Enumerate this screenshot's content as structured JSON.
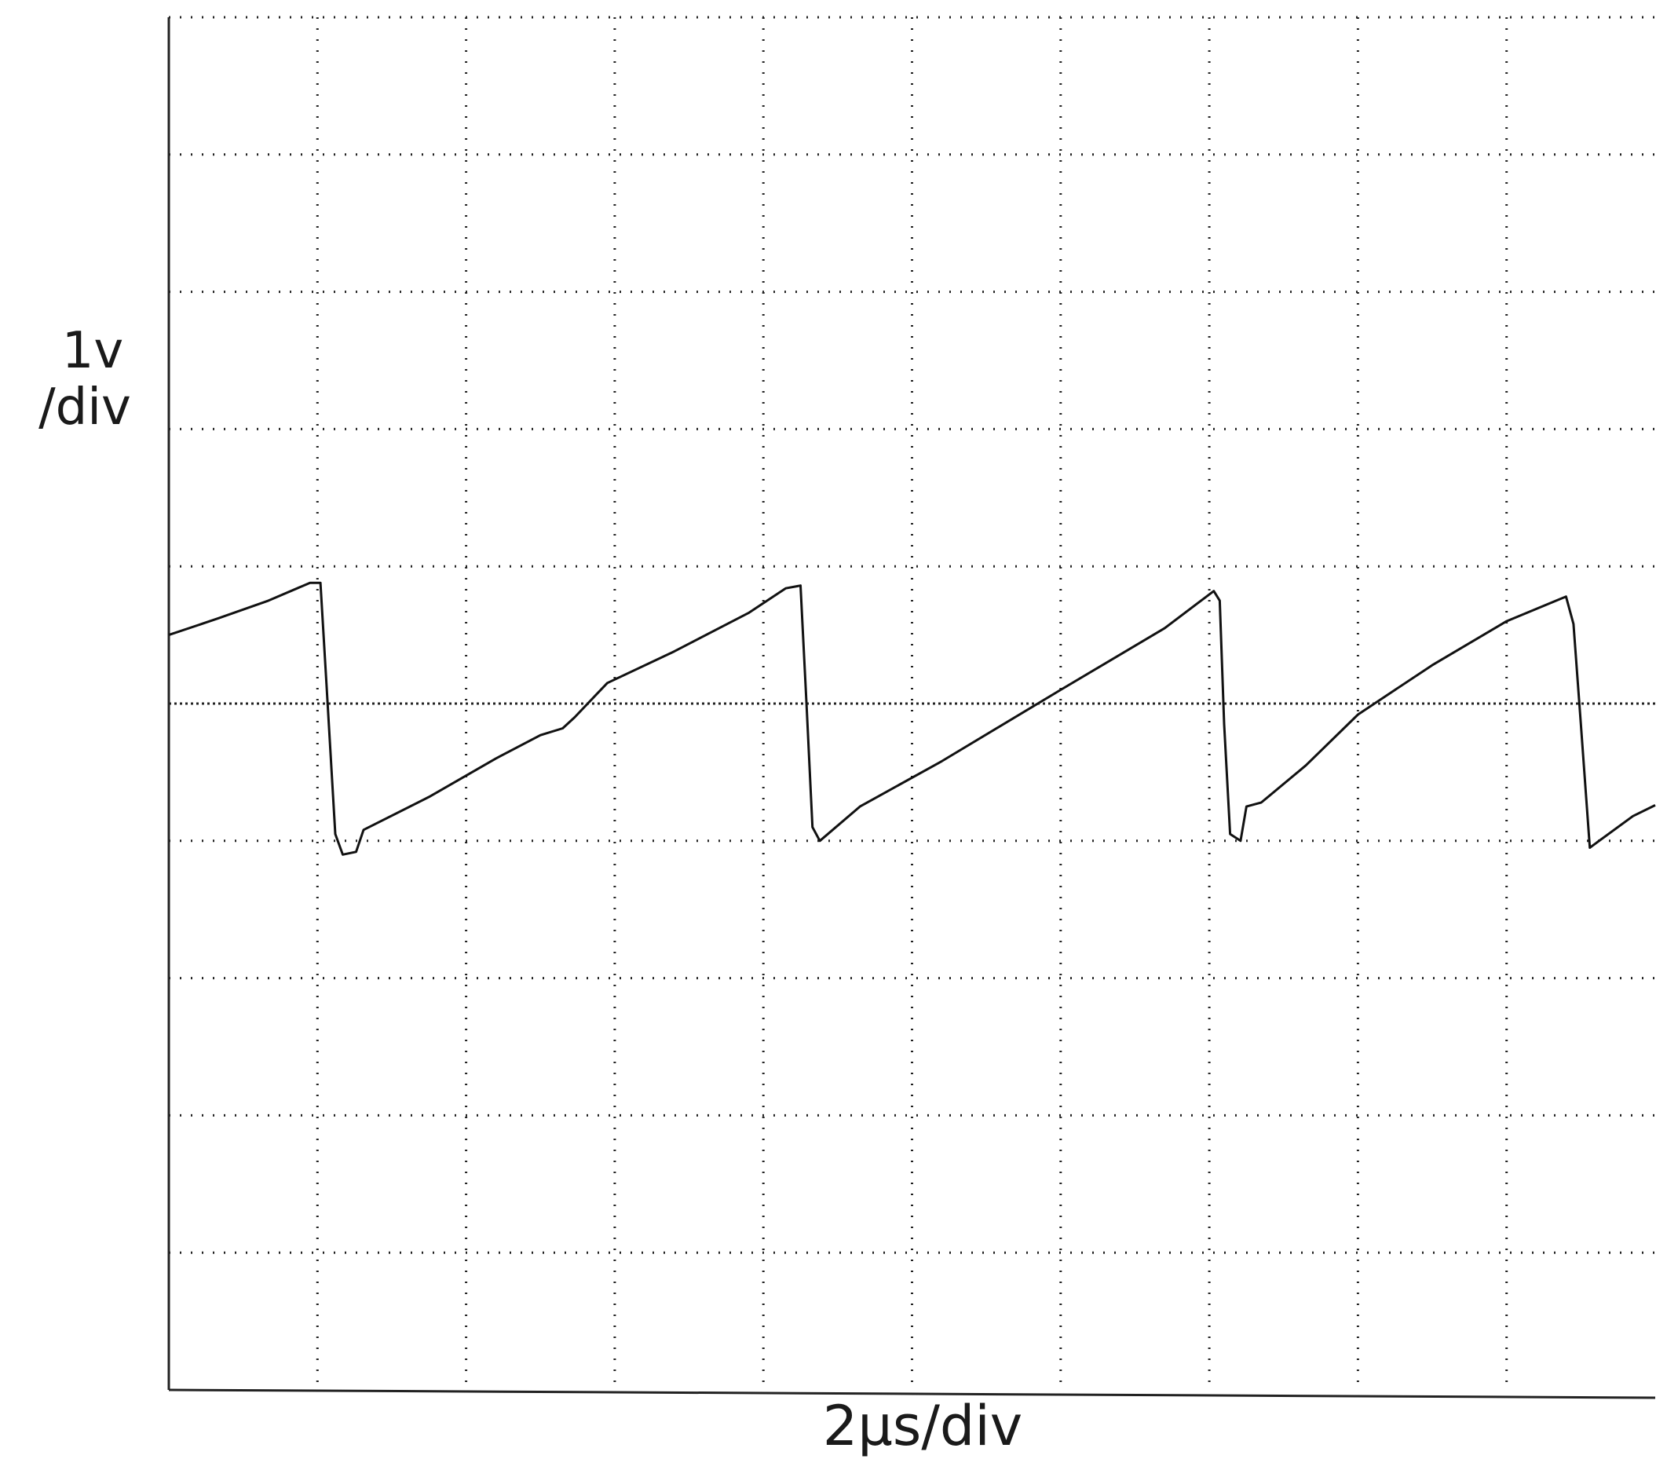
{
  "chart_data": {
    "type": "line",
    "ylabel_line1": "1v",
    "ylabel_line2": "/div",
    "xlabel": "2µs/div",
    "grid": true,
    "x_divisions": 10,
    "y_divisions": 10,
    "xlim": [
      0,
      10
    ],
    "ylim": [
      -5,
      5
    ],
    "reference_level": 0,
    "series": [
      {
        "points": [
          [
            0.0,
            0.5
          ],
          [
            0.33,
            0.62
          ],
          [
            0.67,
            0.75
          ],
          [
            0.95,
            0.88
          ],
          [
            1.02,
            0.88
          ],
          [
            1.06,
            0.15
          ],
          [
            1.12,
            -0.95
          ],
          [
            1.17,
            -1.1
          ],
          [
            1.26,
            -1.08
          ],
          [
            1.31,
            -0.92
          ],
          [
            1.75,
            -0.68
          ],
          [
            2.2,
            -0.4
          ],
          [
            2.5,
            -0.23
          ],
          [
            2.65,
            -0.18
          ],
          [
            2.73,
            -0.1
          ],
          [
            2.95,
            0.15
          ],
          [
            3.4,
            0.38
          ],
          [
            3.9,
            0.66
          ],
          [
            4.15,
            0.84
          ],
          [
            4.25,
            0.86
          ],
          [
            4.29,
            0.0
          ],
          [
            4.33,
            -0.9
          ],
          [
            4.38,
            -1.0
          ],
          [
            4.65,
            -0.75
          ],
          [
            5.2,
            -0.42
          ],
          [
            6.0,
            0.1
          ],
          [
            6.7,
            0.55
          ],
          [
            7.03,
            0.82
          ],
          [
            7.07,
            0.75
          ],
          [
            7.1,
            -0.15
          ],
          [
            7.14,
            -0.95
          ],
          [
            7.21,
            -1.0
          ],
          [
            7.25,
            -0.75
          ],
          [
            7.35,
            -0.72
          ],
          [
            7.65,
            -0.45
          ],
          [
            8.0,
            -0.08
          ],
          [
            8.25,
            0.1
          ],
          [
            8.5,
            0.28
          ],
          [
            9.0,
            0.6
          ],
          [
            9.4,
            0.78
          ],
          [
            9.45,
            0.58
          ],
          [
            9.5,
            -0.15
          ],
          [
            9.56,
            -1.05
          ],
          [
            9.85,
            -0.82
          ],
          [
            10.0,
            -0.74
          ]
        ]
      }
    ]
  }
}
